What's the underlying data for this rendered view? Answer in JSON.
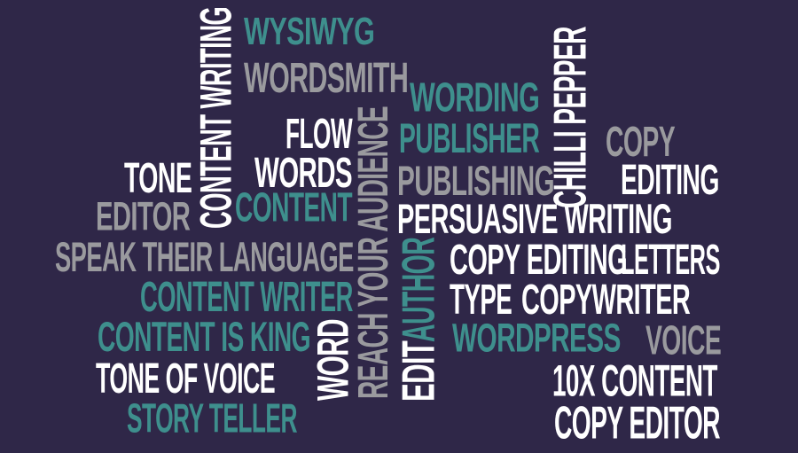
{
  "background_color": "#2f2748",
  "colors": {
    "white": "#ffffff",
    "teal": "#3e8f8d",
    "gray": "#9a9a9e"
  },
  "words": {
    "wysiwyg": "WYSIWYG",
    "wordsmith": "WORDSMITH",
    "content_writing": "CONTENT WRITING",
    "wording": "WORDING",
    "publisher": "PUBLISHER",
    "chilli_pepper": "CHILLI PEPPER",
    "flow": "FLOW",
    "words": "WORDS",
    "copy": "COPY",
    "reach_your_audience": "REACH YOUR AUDIENCE",
    "tone": "TONE",
    "publishing": "PUBLISHING",
    "editing": "EDITING",
    "editor": "EDITOR",
    "content": "CONTENT",
    "persuasive_writing": "PERSUASIVE WRITING",
    "speak_their_language": "SPEAK THEIR LANGUAGE",
    "author": "AUTHOR",
    "copy_editing": "COPY EDITING",
    "letters": "LETTERS",
    "content_writer": "CONTENT WRITER",
    "type": "TYPE",
    "copywriter": "COPYWRITER",
    "edit": "EDIT",
    "content_is_king": "CONTENT IS KING",
    "word": "WORD",
    "wordpress": "WORDPRESS",
    "voice": "VOICE",
    "tone_of_voice": "TONE OF VOICE",
    "ten_x_content": "10X CONTENT",
    "story_teller": "STORY TELLER",
    "copy_editor": "COPY EDITOR"
  }
}
